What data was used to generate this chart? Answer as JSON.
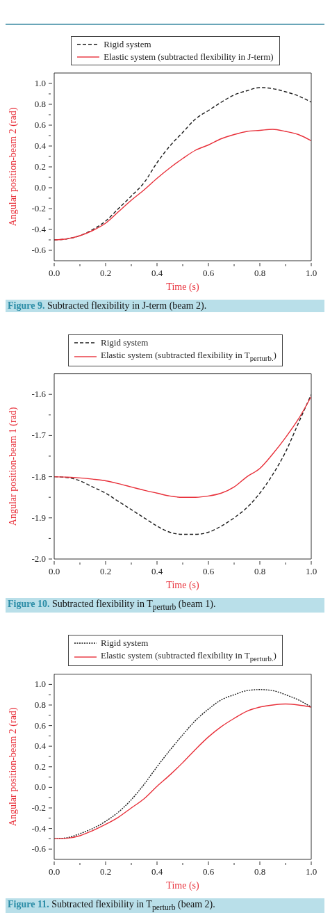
{
  "chart_data": [
    {
      "type": "line",
      "title": "Figure 9. Subtracted flexibility in J-term (beam 2).",
      "xlabel": "Time (s)",
      "ylabel": "Angular position-beam 2 (rad)",
      "legend": "top",
      "x": [
        0,
        0.05,
        0.1,
        0.15,
        0.2,
        0.25,
        0.3,
        0.35,
        0.4,
        0.45,
        0.5,
        0.55,
        0.6,
        0.65,
        0.7,
        0.75,
        0.8,
        0.85,
        0.9,
        0.95,
        1.0
      ],
      "series": [
        {
          "name": "Rigid system",
          "color": "#1a1a1a",
          "line_style": "dashed",
          "values": [
            -0.5,
            -0.49,
            -0.46,
            -0.4,
            -0.32,
            -0.2,
            -0.08,
            0.05,
            0.24,
            0.4,
            0.53,
            0.66,
            0.74,
            0.82,
            0.89,
            0.93,
            0.96,
            0.95,
            0.92,
            0.88,
            0.82
          ]
        },
        {
          "name": "Elastic system (subtracted flexibility in J-term)",
          "color": "#e8303a",
          "line_style": "solid",
          "values": [
            -0.5,
            -0.49,
            -0.46,
            -0.41,
            -0.34,
            -0.23,
            -0.12,
            -0.02,
            0.09,
            0.19,
            0.28,
            0.36,
            0.41,
            0.47,
            0.51,
            0.54,
            0.55,
            0.56,
            0.54,
            0.51,
            0.45
          ]
        }
      ],
      "xlim": [
        0,
        1
      ],
      "xticks": [
        {
          "value": 0,
          "label": "0.0"
        },
        {
          "value": 0.1,
          "label": null
        },
        0.2,
        {
          "value": 0.3,
          "label": null
        },
        0.4,
        {
          "value": 0.5,
          "label": null
        },
        0.6,
        {
          "value": 0.7,
          "label": null
        },
        0.8,
        {
          "value": 0.9,
          "label": null
        },
        {
          "value": 1,
          "label": "1.0"
        }
      ],
      "ylim": [
        -0.7,
        1.1
      ],
      "yticks": [
        -0.6,
        {
          "value": -0.5,
          "label": null
        },
        -0.4,
        {
          "value": -0.3,
          "label": null
        },
        -0.2,
        {
          "value": -0.1,
          "label": null
        },
        {
          "value": 0,
          "label": "0.0"
        },
        {
          "value": 0.1,
          "label": null
        },
        0.2,
        {
          "value": 0.3,
          "label": null
        },
        0.4,
        {
          "value": 0.5,
          "label": null
        },
        0.6,
        {
          "value": 0.7,
          "label": null
        },
        0.8,
        {
          "value": 0.9,
          "label": null
        },
        {
          "value": 1,
          "label": "1.0"
        }
      ]
    },
    {
      "type": "line",
      "title": "Figure 10. Subtracted flexibility in T$_{perturb}$ (beam 1).",
      "xlabel": "Time (s)",
      "ylabel": "Angular position-beam 1 (rad)",
      "legend": "top",
      "x": [
        0,
        0.05,
        0.1,
        0.15,
        0.2,
        0.25,
        0.3,
        0.35,
        0.4,
        0.45,
        0.5,
        0.55,
        0.6,
        0.65,
        0.7,
        0.75,
        0.8,
        0.85,
        0.9,
        0.95,
        1.0
      ],
      "series": [
        {
          "name": "Rigid system",
          "color": "#1a1a1a",
          "line_style": "dashed",
          "values": [
            -1.8,
            -1.802,
            -1.81,
            -1.825,
            -1.84,
            -1.86,
            -1.88,
            -1.9,
            -1.92,
            -1.935,
            -1.94,
            -1.94,
            -1.935,
            -1.92,
            -1.9,
            -1.875,
            -1.84,
            -1.795,
            -1.74,
            -1.67,
            -1.6
          ]
        },
        {
          "name": "Elastic system (subtracted flexibility in T$_{perturb.}$)",
          "color": "#e8303a",
          "line_style": "solid",
          "values": [
            -1.8,
            -1.801,
            -1.803,
            -1.806,
            -1.81,
            -1.817,
            -1.825,
            -1.833,
            -1.84,
            -1.847,
            -1.85,
            -1.85,
            -1.847,
            -1.84,
            -1.825,
            -1.8,
            -1.78,
            -1.745,
            -1.705,
            -1.66,
            -1.605
          ]
        }
      ],
      "xlim": [
        0,
        1
      ],
      "xticks": [
        {
          "value": 0,
          "label": "0.0"
        },
        {
          "value": 0.1,
          "label": null
        },
        0.2,
        {
          "value": 0.3,
          "label": null
        },
        0.4,
        {
          "value": 0.5,
          "label": null
        },
        0.6,
        {
          "value": 0.7,
          "label": null
        },
        0.8,
        {
          "value": 0.9,
          "label": null
        },
        {
          "value": 1,
          "label": "1.0"
        }
      ],
      "ylim": [
        -2.0,
        -1.55
      ],
      "yticks": [
        {
          "value": -2,
          "label": "-2.0"
        },
        {
          "value": -1.95,
          "label": null
        },
        -1.9,
        {
          "value": -1.85,
          "label": null
        },
        -1.8,
        {
          "value": -1.75,
          "label": null
        },
        -1.7,
        {
          "value": -1.65,
          "label": null
        },
        -1.6
      ]
    },
    {
      "type": "line",
      "title": "Figure 11. Subtracted flexibility in T$_{perturb}$ (beam 2).",
      "xlabel": "Time (s)",
      "ylabel": "Angular position-beam 2 (rad)",
      "legend": "top",
      "x": [
        0,
        0.05,
        0.1,
        0.15,
        0.2,
        0.25,
        0.3,
        0.35,
        0.4,
        0.45,
        0.5,
        0.55,
        0.6,
        0.65,
        0.7,
        0.75,
        0.8,
        0.85,
        0.9,
        0.95,
        1.0
      ],
      "series": [
        {
          "name": "Rigid system",
          "color": "#1a1a1a",
          "line_style": "dotted",
          "values": [
            -0.5,
            -0.49,
            -0.45,
            -0.4,
            -0.33,
            -0.24,
            -0.12,
            0.03,
            0.2,
            0.36,
            0.51,
            0.65,
            0.76,
            0.85,
            0.9,
            0.94,
            0.95,
            0.94,
            0.9,
            0.85,
            0.78
          ]
        },
        {
          "name": "Elastic system (subtracted flexibility in T$_{perturb.}$)",
          "color": "#e8303a",
          "line_style": "solid",
          "values": [
            -0.5,
            -0.495,
            -0.47,
            -0.42,
            -0.36,
            -0.29,
            -0.2,
            -0.11,
            0.01,
            0.12,
            0.24,
            0.37,
            0.49,
            0.59,
            0.67,
            0.74,
            0.78,
            0.8,
            0.81,
            0.8,
            0.78
          ]
        }
      ],
      "xlim": [
        0,
        1
      ],
      "xticks": [
        {
          "value": 0,
          "label": "0.0"
        },
        {
          "value": 0.1,
          "label": null
        },
        0.2,
        {
          "value": 0.3,
          "label": null
        },
        0.4,
        {
          "value": 0.5,
          "label": null
        },
        0.6,
        {
          "value": 0.7,
          "label": null
        },
        0.8,
        {
          "value": 0.9,
          "label": null
        },
        {
          "value": 1,
          "label": "1.0"
        }
      ],
      "ylim": [
        -0.7,
        1.1
      ],
      "yticks": [
        -0.6,
        {
          "value": -0.5,
          "label": null
        },
        -0.4,
        {
          "value": -0.3,
          "label": null
        },
        -0.2,
        {
          "value": -0.1,
          "label": null
        },
        {
          "value": 0,
          "label": "0.0"
        },
        {
          "value": 0.1,
          "label": null
        },
        0.2,
        {
          "value": 0.3,
          "label": null
        },
        0.4,
        {
          "value": 0.5,
          "label": null
        },
        0.6,
        {
          "value": 0.7,
          "label": null
        },
        0.8,
        {
          "value": 0.9,
          "label": null
        },
        {
          "value": 1,
          "label": "1.0"
        }
      ]
    }
  ]
}
